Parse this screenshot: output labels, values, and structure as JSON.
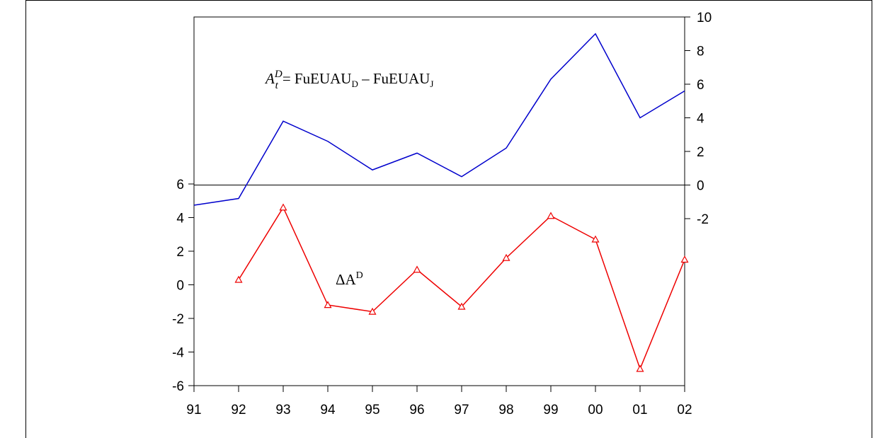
{
  "chart_data": [
    {
      "type": "line",
      "x_categories": [
        "91",
        "92",
        "93",
        "94",
        "95",
        "96",
        "97",
        "98",
        "99",
        "00",
        "01",
        "02"
      ],
      "y_axis": "right",
      "yticks": [
        -2,
        0,
        2,
        4,
        6,
        8,
        10
      ],
      "ylim": [
        -2,
        10
      ],
      "series": [
        {
          "name": "",
          "color": "#0000cc",
          "marker": "none",
          "values": [
            -1.2,
            -0.8,
            3.8,
            2.6,
            0.9,
            1.9,
            0.5,
            2.2,
            6.3,
            9.0,
            4.0,
            5.6
          ]
        }
      ],
      "annotation": {
        "A": "A",
        "sup": "D",
        "sub": "t",
        "rhs": "= FuEUAU",
        "rhs_sub1": "D",
        "minus": " – FuEUAU",
        "rhs_sub2": "J"
      },
      "zero_line": true
    },
    {
      "type": "line",
      "x_categories": [
        "91",
        "92",
        "93",
        "94",
        "95",
        "96",
        "97",
        "98",
        "99",
        "00",
        "01",
        "02"
      ],
      "y_axis": "left",
      "yticks": [
        -6,
        -4,
        -2,
        0,
        2,
        4,
        6
      ],
      "ylim": [
        -6,
        6
      ],
      "series": [
        {
          "name": "",
          "color": "#ee0000",
          "marker": "triangle",
          "values": [
            null,
            0.3,
            4.6,
            -1.2,
            -1.6,
            0.9,
            -1.3,
            1.6,
            4.1,
            2.7,
            -5.0,
            1.5
          ]
        }
      ],
      "annotation": {
        "delta": "ΔA",
        "sup": "D"
      }
    }
  ]
}
